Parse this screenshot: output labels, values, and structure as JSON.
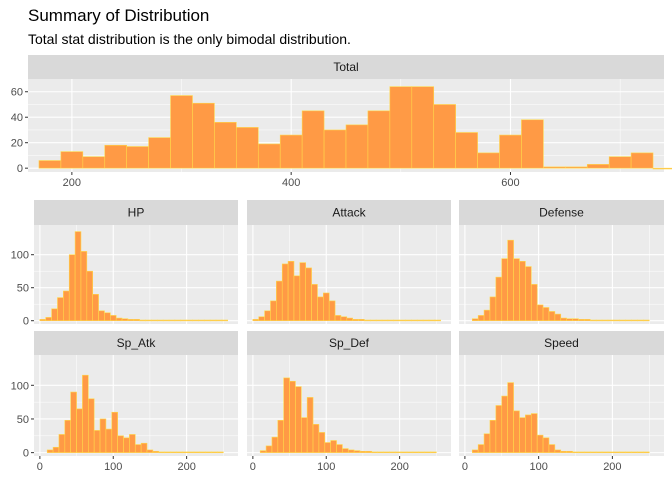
{
  "title": "Summary of Distribution",
  "subtitle": "Total stat distribution is the only bimodal distribution.",
  "colors": {
    "fill": "#FF9A45",
    "outline": "#FFD84A",
    "panel": "#EBEBEB",
    "strip": "#D9D9D9",
    "grid": "#FFFFFF",
    "tick_text": "#4D4D4D"
  },
  "chart_data": [
    {
      "type": "bar",
      "panel": "Total",
      "bin_width": 20,
      "x_start": 170,
      "xlim": [
        160,
        740
      ],
      "ylim": [
        -3,
        70
      ],
      "xticks": [
        200,
        400,
        600
      ],
      "yticks": [
        0,
        20,
        40,
        60
      ],
      "values": [
        6,
        13,
        9,
        18,
        17,
        24,
        57,
        51,
        36,
        32,
        19,
        26,
        45,
        30,
        34,
        45,
        64,
        64,
        50,
        28,
        12,
        26,
        38,
        1,
        1,
        3,
        9,
        12,
        0,
        2
      ]
    },
    {
      "type": "bar",
      "panel": "HP",
      "bin_width": 8,
      "x_start": 0,
      "xlim": [
        -8,
        270
      ],
      "ylim": [
        -5,
        145
      ],
      "xticks": [
        0,
        100,
        200
      ],
      "yticks": [
        0,
        50,
        100
      ],
      "values": [
        2,
        5,
        18,
        35,
        45,
        100,
        135,
        105,
        75,
        40,
        15,
        12,
        8,
        4,
        3,
        2,
        2,
        1,
        1,
        1,
        1,
        1,
        1,
        1,
        1,
        1,
        1,
        1,
        1,
        1,
        1,
        1
      ]
    },
    {
      "type": "bar",
      "panel": "Attack",
      "bin_width": 8,
      "x_start": 0,
      "xlim": [
        -8,
        270
      ],
      "ylim": [
        -5,
        145
      ],
      "xticks": [
        0,
        100,
        200
      ],
      "yticks": [
        0,
        50,
        100
      ],
      "values": [
        2,
        6,
        15,
        30,
        60,
        86,
        90,
        68,
        88,
        80,
        55,
        36,
        42,
        30,
        8,
        6,
        4,
        2,
        2,
        1,
        1,
        1,
        1,
        1,
        1,
        1,
        1,
        1,
        1,
        1,
        1,
        1
      ]
    },
    {
      "type": "bar",
      "panel": "Defense",
      "bin_width": 8,
      "x_start": 10,
      "xlim": [
        -8,
        270
      ],
      "ylim": [
        -5,
        145
      ],
      "xticks": [
        0,
        100,
        200
      ],
      "yticks": [
        0,
        50,
        100
      ],
      "values": [
        3,
        8,
        16,
        36,
        66,
        94,
        122,
        94,
        90,
        82,
        55,
        24,
        20,
        14,
        10,
        4,
        3,
        3,
        2,
        2,
        1,
        1,
        1,
        1,
        1,
        1,
        1,
        1,
        1,
        1
      ]
    },
    {
      "type": "bar",
      "panel": "Sp_Atk",
      "bin_width": 8,
      "x_start": 10,
      "xlim": [
        -8,
        270
      ],
      "ylim": [
        -5,
        145
      ],
      "xticks": [
        0,
        100,
        200
      ],
      "yticks": [
        0,
        50,
        100
      ],
      "values": [
        4,
        8,
        27,
        48,
        90,
        65,
        115,
        80,
        33,
        50,
        35,
        60,
        25,
        22,
        27,
        12,
        14,
        4,
        2,
        1,
        1,
        1,
        1,
        1,
        1,
        1,
        1,
        1,
        1,
        1
      ]
    },
    {
      "type": "bar",
      "panel": "Sp_Def",
      "bin_width": 8,
      "x_start": 10,
      "xlim": [
        -8,
        270
      ],
      "ylim": [
        -5,
        145
      ],
      "xticks": [
        0,
        100,
        200
      ],
      "yticks": [
        0,
        50,
        100
      ],
      "values": [
        3,
        10,
        23,
        48,
        111,
        106,
        98,
        52,
        82,
        42,
        30,
        15,
        18,
        12,
        6,
        4,
        3,
        2,
        2,
        1,
        1,
        1,
        1,
        1,
        1,
        1,
        1,
        1,
        1,
        1
      ]
    },
    {
      "type": "bar",
      "panel": "Speed",
      "bin_width": 8,
      "x_start": 10,
      "xlim": [
        -8,
        270
      ],
      "ylim": [
        -5,
        145
      ],
      "xticks": [
        0,
        100,
        200
      ],
      "yticks": [
        0,
        50,
        100
      ],
      "values": [
        4,
        12,
        28,
        48,
        70,
        84,
        104,
        62,
        52,
        56,
        58,
        26,
        22,
        12,
        4,
        2,
        2,
        1,
        1,
        1,
        1,
        1,
        1,
        1,
        1,
        1,
        1,
        1,
        1,
        1
      ]
    }
  ]
}
